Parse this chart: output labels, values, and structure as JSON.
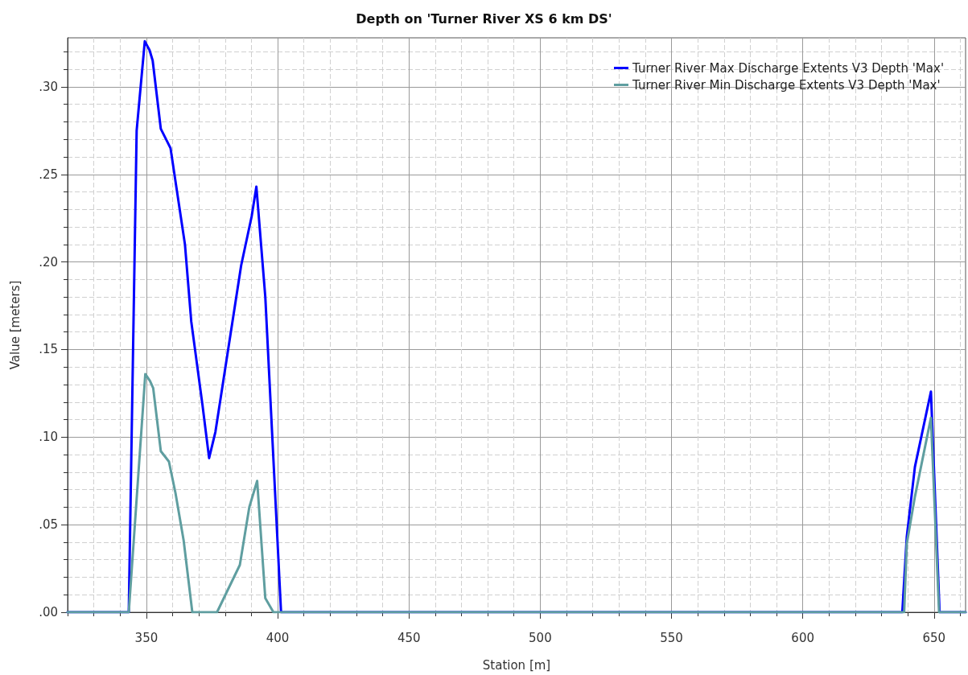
{
  "chart_data": {
    "type": "line",
    "title": "Depth on 'Turner River XS 6 km DS'",
    "xlabel": "Station [m]",
    "ylabel": "Value [meters]",
    "xlim": [
      320,
      662
    ],
    "ylim": [
      0,
      0.328
    ],
    "xticks": [
      {
        "value": 320,
        "label": null
      },
      {
        "value": 330,
        "label": null
      },
      {
        "value": 340,
        "label": null
      },
      350,
      {
        "value": 360,
        "label": null
      },
      {
        "value": 370,
        "label": null
      },
      {
        "value": 380,
        "label": null
      },
      {
        "value": 390,
        "label": null
      },
      400,
      {
        "value": 410,
        "label": null
      },
      {
        "value": 420,
        "label": null
      },
      {
        "value": 430,
        "label": null
      },
      {
        "value": 440,
        "label": null
      },
      450,
      {
        "value": 460,
        "label": null
      },
      {
        "value": 470,
        "label": null
      },
      {
        "value": 480,
        "label": null
      },
      {
        "value": 490,
        "label": null
      },
      500,
      {
        "value": 510,
        "label": null
      },
      {
        "value": 520,
        "label": null
      },
      {
        "value": 530,
        "label": null
      },
      {
        "value": 540,
        "label": null
      },
      550,
      {
        "value": 560,
        "label": null
      },
      {
        "value": 570,
        "label": null
      },
      {
        "value": 580,
        "label": null
      },
      {
        "value": 590,
        "label": null
      },
      600,
      {
        "value": 610,
        "label": null
      },
      {
        "value": 620,
        "label": null
      },
      {
        "value": 630,
        "label": null
      },
      {
        "value": 640,
        "label": null
      },
      650,
      {
        "value": 660,
        "label": null
      }
    ],
    "yticks": [
      {
        "value": 0,
        "label": ".00"
      },
      {
        "value": 0.01,
        "label": null
      },
      {
        "value": 0.02,
        "label": null
      },
      {
        "value": 0.03,
        "label": null
      },
      {
        "value": 0.04,
        "label": null
      },
      {
        "value": 0.05,
        "label": ".05"
      },
      {
        "value": 0.06,
        "label": null
      },
      {
        "value": 0.07,
        "label": null
      },
      {
        "value": 0.08,
        "label": null
      },
      {
        "value": 0.09,
        "label": null
      },
      {
        "value": 0.1,
        "label": ".10"
      },
      {
        "value": 0.11,
        "label": null
      },
      {
        "value": 0.12,
        "label": null
      },
      {
        "value": 0.13,
        "label": null
      },
      {
        "value": 0.14,
        "label": null
      },
      {
        "value": 0.15,
        "label": ".15"
      },
      {
        "value": 0.16,
        "label": null
      },
      {
        "value": 0.17,
        "label": null
      },
      {
        "value": 0.18,
        "label": null
      },
      {
        "value": 0.19,
        "label": null
      },
      {
        "value": 0.2,
        "label": ".20"
      },
      {
        "value": 0.21,
        "label": null
      },
      {
        "value": 0.22,
        "label": null
      },
      {
        "value": 0.23,
        "label": null
      },
      {
        "value": 0.24,
        "label": null
      },
      {
        "value": 0.25,
        "label": ".25"
      },
      {
        "value": 0.26,
        "label": null
      },
      {
        "value": 0.27,
        "label": null
      },
      {
        "value": 0.28,
        "label": null
      },
      {
        "value": 0.29,
        "label": null
      },
      {
        "value": 0.3,
        "label": ".30"
      },
      {
        "value": 0.31,
        "label": null
      },
      {
        "value": 0.32,
        "label": null
      }
    ],
    "grid": true,
    "legend": "top right",
    "marker": "none",
    "line_style": "solid",
    "series": [
      {
        "name": "Turner River Max Discharge Extents V3 Depth 'Max'",
        "color": "#0000ff",
        "x": [
          320,
          343.3,
          346.3,
          349.4,
          351.2,
          352.4,
          355.5,
          359.2,
          364.7,
          367.1,
          371.4,
          373.9,
          376.3,
          386.1,
          390.1,
          391.9,
          395.3,
          401.3,
          637.9,
          639.6,
          642.7,
          648.8,
          652.1,
          662
        ],
        "values": [
          0,
          0,
          0.275,
          0.326,
          0.321,
          0.315,
          0.276,
          0.265,
          0.21,
          0.166,
          0.118,
          0.088,
          0.103,
          0.198,
          0.226,
          0.243,
          0.18,
          0,
          0,
          0.043,
          0.083,
          0.126,
          0,
          0
        ]
      },
      {
        "name": "Turner River Min Discharge Extents V3 Depth 'Max'",
        "color": "#5f9ea0",
        "x": [
          320,
          343.3,
          349.6,
          351.4,
          352.6,
          355.5,
          358.6,
          361.1,
          364.2,
          367.5,
          376.9,
          385.6,
          389.2,
          392.2,
          395.3,
          398.4,
          638.6,
          639.6,
          642.7,
          648.8,
          651.9,
          662
        ],
        "values": [
          0,
          0,
          0.136,
          0.132,
          0.128,
          0.092,
          0.086,
          0.068,
          0.041,
          0,
          0,
          0.027,
          0.06,
          0.075,
          0.008,
          0,
          0,
          0.039,
          0.066,
          0.111,
          0,
          0
        ]
      }
    ]
  }
}
